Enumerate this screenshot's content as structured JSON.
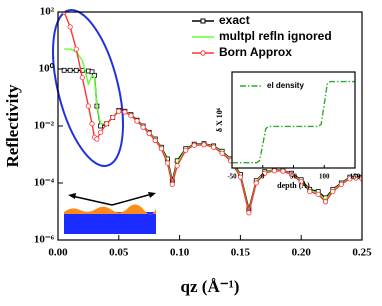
{
  "chart_data": [
    {
      "type": "line",
      "ylabel": "Reflectivity",
      "xlabel": "qz (Å⁻¹)",
      "log_y": true,
      "legend": "upper right",
      "x": [
        0.003,
        0.005,
        0.01,
        0.015,
        0.02,
        0.025,
        0.028,
        0.03,
        0.032,
        0.035,
        0.04,
        0.045,
        0.05,
        0.055,
        0.06,
        0.065,
        0.07,
        0.075,
        0.08,
        0.085,
        0.09,
        0.094,
        0.098,
        0.105,
        0.112,
        0.12,
        0.128,
        0.135,
        0.142,
        0.15,
        0.157,
        0.163,
        0.17,
        0.178,
        0.185,
        0.192,
        0.2,
        0.207,
        0.214,
        0.22,
        0.226,
        0.233,
        0.24,
        0.245,
        0.25
      ],
      "series": [
        {
          "name": "exact",
          "color": "#000000",
          "marker": "square",
          "values": [
            null,
            0.9,
            0.9,
            0.9,
            0.9,
            0.85,
            0.8,
            0.6,
            0.05,
            0.01,
            0.012,
            0.02,
            0.035,
            0.033,
            0.025,
            0.016,
            0.01,
            0.006,
            0.0035,
            0.0018,
            0.0007,
            0.00012,
            0.0006,
            0.0016,
            0.0023,
            0.0024,
            0.002,
            0.0013,
            0.0007,
            0.0002,
            1.2e-05,
            0.00012,
            0.00025,
            0.00029,
            0.00028,
            0.00022,
            0.00013,
            6e-05,
            5e-05,
            3e-05,
            6e-05,
            0.0001,
            0.00016,
            0.00017,
            0.00016
          ]
        },
        {
          "name": "multpl refln ignored",
          "color": "#66ff33",
          "marker": "none",
          "values": [
            null,
            5,
            5,
            4,
            2,
            0.3,
            0.6,
            0.5,
            0.05,
            0.012,
            0.012,
            0.02,
            0.034,
            0.032,
            0.024,
            0.015,
            0.0095,
            0.0058,
            0.0033,
            0.0017,
            0.0006,
            0.0001,
            0.0005,
            0.0015,
            0.0022,
            0.0023,
            0.0019,
            0.0012,
            0.00065,
            0.00018,
            1e-05,
            0.00011,
            0.00024,
            0.00028,
            0.00027,
            0.00021,
            0.00012,
            5.5e-05,
            4.5e-05,
            2.5e-05,
            5.5e-05,
            9.5e-05,
            0.00015,
            0.00016,
            0.00015
          ]
        },
        {
          "name": "Born Approx",
          "color": "#ff3333",
          "marker": "circle",
          "values": [
            null,
            100,
            30,
            5,
            0.5,
            0.05,
            0.012,
            0.004,
            0.0035,
            0.006,
            0.012,
            0.02,
            0.033,
            0.031,
            0.023,
            0.015,
            0.009,
            0.0055,
            0.0031,
            0.0016,
            0.0005,
            9e-05,
            0.0004,
            0.0014,
            0.0021,
            0.0022,
            0.0018,
            0.0011,
            0.0006,
            0.00016,
            9e-06,
            0.0001,
            0.00022,
            0.00027,
            0.00026,
            0.0002,
            0.00011,
            5e-05,
            4e-05,
            2.2e-05,
            5e-05,
            9e-05,
            0.00014,
            0.00015,
            0.00014
          ]
        }
      ],
      "xlim": [
        0,
        0.25
      ],
      "xticks": [
        {
          "value": 0,
          "label": "0.00"
        },
        0.05,
        {
          "value": 0.1,
          "label": "0.10"
        },
        0.15,
        {
          "value": 0.2,
          "label": "0.20"
        },
        0.25
      ],
      "ylim": [
        1e-06,
        100
      ],
      "yticks": [
        {
          "value": 1e-06,
          "label": "10⁻⁶"
        },
        {
          "value": 0.0001,
          "label": "10⁻⁴"
        },
        {
          "value": 0.01,
          "label": "10⁻²"
        },
        {
          "value": 1,
          "label": "10⁰"
        },
        {
          "value": 100,
          "label": "10²"
        }
      ]
    },
    {
      "type": "line",
      "ylabel": "δ X 10⁶",
      "xlabel": "depth (Å)",
      "log_y": false,
      "legend": "upper left",
      "x": [
        -50,
        -10,
        -5,
        0,
        5,
        10,
        50,
        90,
        95,
        100,
        105,
        110,
        150
      ],
      "series": [
        {
          "name": "el density",
          "color": "#33aa33",
          "marker": "none",
          "linestyle": "dash-dot",
          "values": [
            0,
            0,
            0.2,
            1.7,
            3.2,
            3.4,
            3.4,
            3.4,
            3.6,
            5.5,
            7.4,
            7.6,
            7.6
          ]
        }
      ],
      "xlim": [
        -50,
        150
      ],
      "xticks": [
        -50,
        0,
        50,
        100,
        150
      ],
      "ylim": [
        -0.5,
        8.5
      ]
    }
  ]
}
